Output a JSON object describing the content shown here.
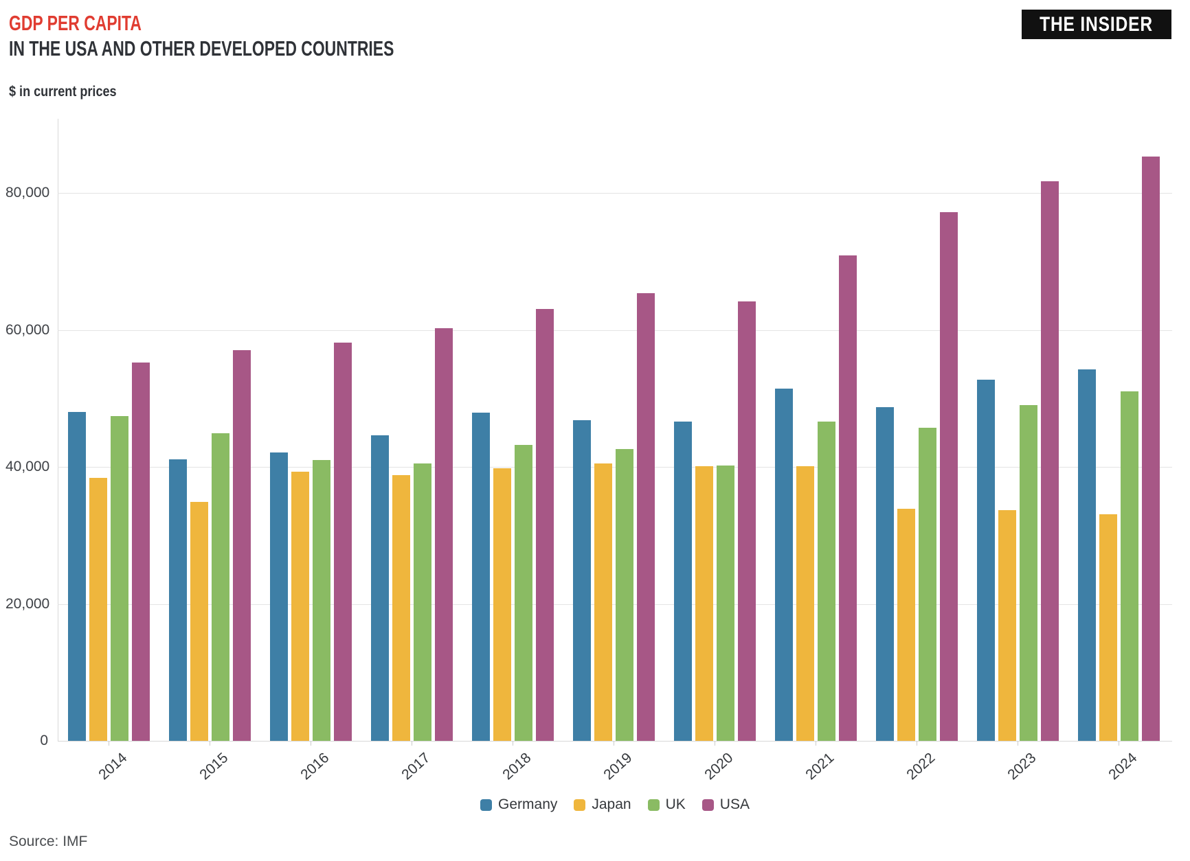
{
  "header": {
    "title": "GDP PER CAPITA",
    "subtitle": "IN THE USA AND OTHER DEVELOPED COUNTRIES",
    "units_label": "$ in current prices",
    "logo_text": "THE INSIDER"
  },
  "source": {
    "text": "Source: IMF"
  },
  "colors": {
    "title_red": "#E03C31",
    "heading_dark": "#2F3237",
    "grid": "#E4E4E4",
    "axis": "#D8D8D8",
    "tick": "#CCCCCC",
    "germany": "#3E7FA6",
    "japan": "#EFB63D",
    "uk": "#8ABB63",
    "usa": "#A75786"
  },
  "chart_data": {
    "type": "bar",
    "title": "GDP PER CAPITA IN THE USA AND OTHER DEVELOPED COUNTRIES",
    "subtitle": "$ in current prices",
    "xlabel": "",
    "ylabel": "$ in current prices",
    "categories": [
      "2014",
      "2015",
      "2016",
      "2017",
      "2018",
      "2019",
      "2020",
      "2021",
      "2022",
      "2023",
      "2024"
    ],
    "series": [
      {
        "name": "Germany",
        "color": "#3E7FA6",
        "values": [
          48000,
          41100,
          42100,
          44600,
          47900,
          46800,
          46600,
          51400,
          48700,
          52700,
          54200
        ]
      },
      {
        "name": "Japan",
        "color": "#EFB63D",
        "values": [
          38400,
          34900,
          39300,
          38800,
          39800,
          40500,
          40100,
          40100,
          33900,
          33700,
          33100
        ]
      },
      {
        "name": "UK",
        "color": "#8ABB63",
        "values": [
          47400,
          44900,
          41000,
          40500,
          43200,
          42600,
          40200,
          46600,
          45700,
          49000,
          51000
        ]
      },
      {
        "name": "USA",
        "color": "#A75786",
        "values": [
          55200,
          57000,
          58100,
          60300,
          63100,
          65400,
          64200,
          70900,
          77200,
          81700,
          85300
        ]
      }
    ],
    "ylim": [
      0,
      88000
    ],
    "yticks": [
      0,
      20000,
      40000,
      60000,
      80000
    ],
    "ytick_labels": [
      "0",
      "20,000",
      "40,000",
      "60,000",
      "80,000"
    ],
    "grid": true,
    "legend_position": "bottom",
    "source": "Source: IMF"
  }
}
